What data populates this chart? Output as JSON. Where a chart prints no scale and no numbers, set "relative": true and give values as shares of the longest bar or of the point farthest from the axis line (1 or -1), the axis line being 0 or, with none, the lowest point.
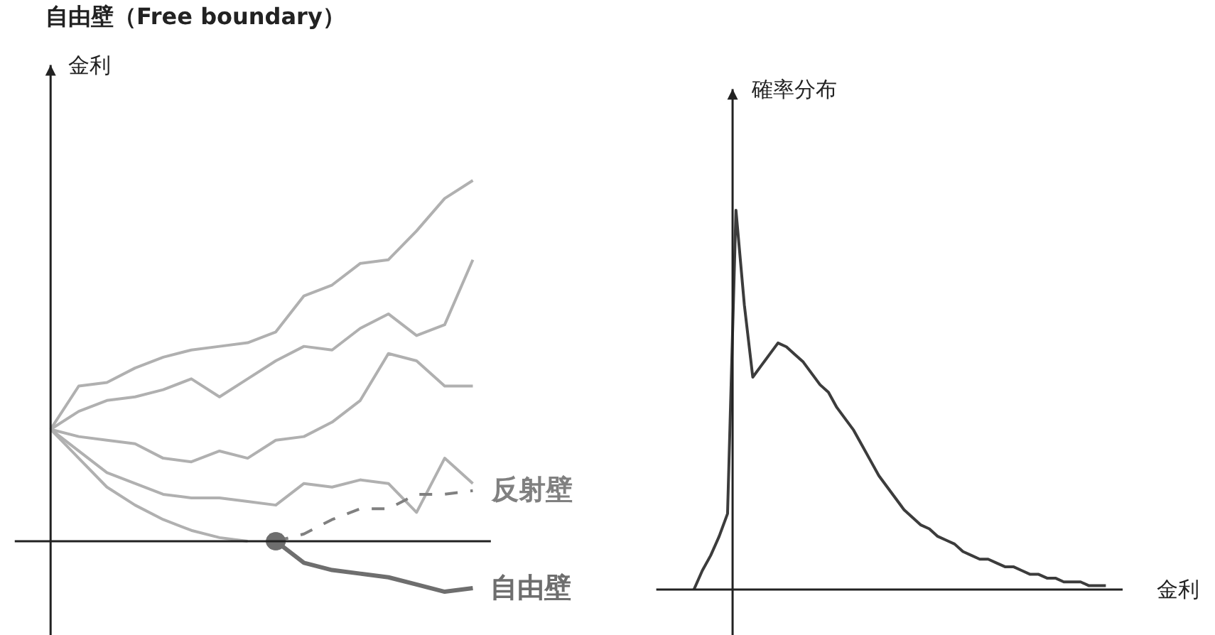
{
  "chart_data": [
    {
      "type": "line",
      "relative": true,
      "title": "自由壁（Free boundary）",
      "ylabel": "金利",
      "categories": [
        null,
        null,
        null,
        null,
        null,
        null,
        null,
        null,
        null,
        null,
        null,
        null,
        null,
        null,
        null,
        null
      ],
      "series": [
        {
          "color": "#b0b0b0",
          "values": [
            0.31,
            0.43,
            0.44,
            0.48,
            0.51,
            0.53,
            0.54,
            0.55,
            0.58,
            0.68,
            0.71,
            0.77,
            0.78,
            0.86,
            0.95,
            1.0
          ]
        },
        {
          "color": "#b0b0b0",
          "values": [
            0.31,
            0.36,
            0.39,
            0.4,
            0.42,
            0.45,
            0.4,
            0.45,
            0.5,
            0.54,
            0.53,
            0.59,
            0.63,
            0.57,
            0.6,
            0.78
          ]
        },
        {
          "color": "#b0b0b0",
          "values": [
            0.31,
            0.29,
            0.28,
            0.27,
            0.23,
            0.22,
            0.25,
            0.23,
            0.28,
            0.29,
            0.33,
            0.39,
            0.52,
            0.5,
            0.43,
            0.43
          ]
        },
        {
          "color": "#b0b0b0",
          "values": [
            0.31,
            0.25,
            0.19,
            0.16,
            0.13,
            0.12,
            0.12,
            0.11,
            0.1,
            0.16,
            0.15,
            0.17,
            0.16,
            0.08,
            0.23,
            0.16
          ]
        },
        {
          "color": "#b0b0b0",
          "values": [
            0.31,
            0.23,
            0.15,
            0.1,
            0.06,
            0.03,
            0.01,
            0.0,
            null,
            null,
            null,
            null,
            null,
            null,
            null,
            null
          ]
        },
        {
          "name": "反射壁",
          "color": "#808080",
          "line_style": "dashed",
          "values": [
            null,
            null,
            null,
            null,
            null,
            null,
            null,
            null,
            0.0,
            0.02,
            0.06,
            0.09,
            0.09,
            0.13,
            0.13,
            0.14
          ]
        },
        {
          "name": "自由壁",
          "color": "#6e6e6e",
          "values": [
            null,
            null,
            null,
            null,
            null,
            null,
            null,
            null,
            0.0,
            -0.06,
            -0.08,
            -0.09,
            -0.1,
            -0.12,
            -0.14,
            -0.13
          ]
        }
      ]
    },
    {
      "type": "line",
      "relative": true,
      "ylabel": "確率分布",
      "xlabel": "金利",
      "categories": [
        null,
        null,
        null,
        null,
        null,
        null,
        null,
        null,
        null,
        null,
        null,
        null,
        null,
        null,
        null,
        null,
        null,
        null,
        null,
        null,
        null,
        null,
        null,
        null,
        null,
        null,
        null,
        null,
        null,
        null,
        null,
        null,
        null,
        null,
        null,
        null,
        null,
        null,
        null,
        null,
        null,
        null,
        null,
        null,
        null,
        null,
        null,
        null,
        null,
        null
      ],
      "series": [
        {
          "color": "#3c3c3c",
          "values": [
            0.0,
            0.05,
            0.09,
            0.14,
            0.2,
            1.0,
            0.75,
            0.56,
            0.59,
            0.62,
            0.65,
            0.64,
            0.62,
            0.6,
            0.57,
            0.54,
            0.52,
            0.48,
            0.45,
            0.42,
            0.38,
            0.34,
            0.3,
            0.27,
            0.24,
            0.21,
            0.19,
            0.17,
            0.16,
            0.14,
            0.13,
            0.12,
            0.1,
            0.09,
            0.08,
            0.08,
            0.07,
            0.06,
            0.06,
            0.05,
            0.04,
            0.04,
            0.03,
            0.03,
            0.02,
            0.02,
            0.02,
            0.01,
            0.01,
            0.01
          ]
        }
      ]
    }
  ]
}
